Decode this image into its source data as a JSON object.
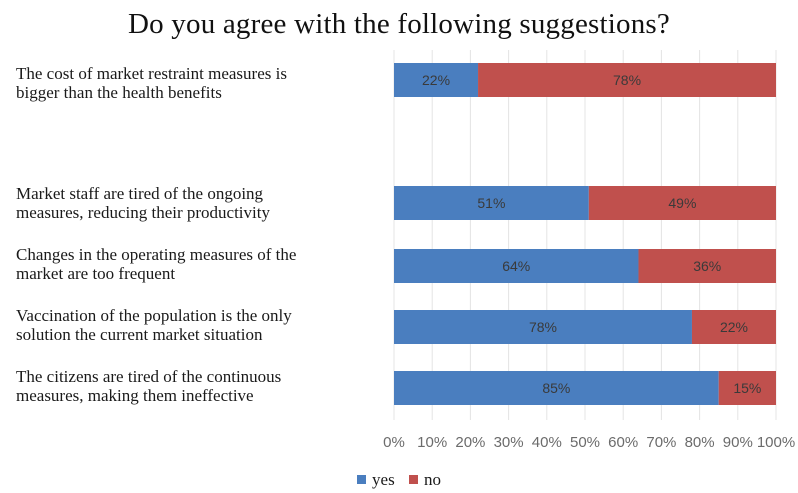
{
  "chart_data": {
    "type": "bar",
    "orientation": "horizontal",
    "stacked": true,
    "title": "Do you agree with the following suggestions?",
    "categories": [
      "The cost of market restraint measures is bigger than the health benefits",
      "Market staff are tired of the ongoing measures, reducing their productivity",
      "Changes in the operating measures of the market are too frequent",
      "Vaccination of the population is the only solution the current market situation",
      "The citizens are tired of the continuous measures, making them ineffective"
    ],
    "category_lines": [
      [
        "The cost of market restraint measures is",
        "bigger than the health benefits"
      ],
      [
        "Market staff are tired of the ongoing",
        "measures, reducing their productivity"
      ],
      [
        "Changes in the operating measures of the",
        "market are too frequent"
      ],
      [
        "Vaccination of the population is the only",
        "solution the current market situation"
      ],
      [
        "The citizens are tired of the continuous",
        "measures, making them ineffective"
      ]
    ],
    "series": [
      {
        "name": "yes",
        "color": "#4a7ebf",
        "values": [
          22,
          51,
          64,
          78,
          85
        ],
        "labels": [
          "22%",
          "51%",
          "64%",
          "78%",
          "85%"
        ]
      },
      {
        "name": "no",
        "color": "#c0504d",
        "values": [
          78,
          49,
          36,
          22,
          15
        ],
        "labels": [
          "78%",
          "49%",
          "36%",
          "22%",
          "15%"
        ]
      }
    ],
    "x_ticks": [
      "0%",
      "10%",
      "20%",
      "30%",
      "40%",
      "50%",
      "60%",
      "70%",
      "80%",
      "90%",
      "100%"
    ],
    "xlim": [
      0,
      100
    ],
    "grid": true,
    "legend_position": "bottom"
  }
}
